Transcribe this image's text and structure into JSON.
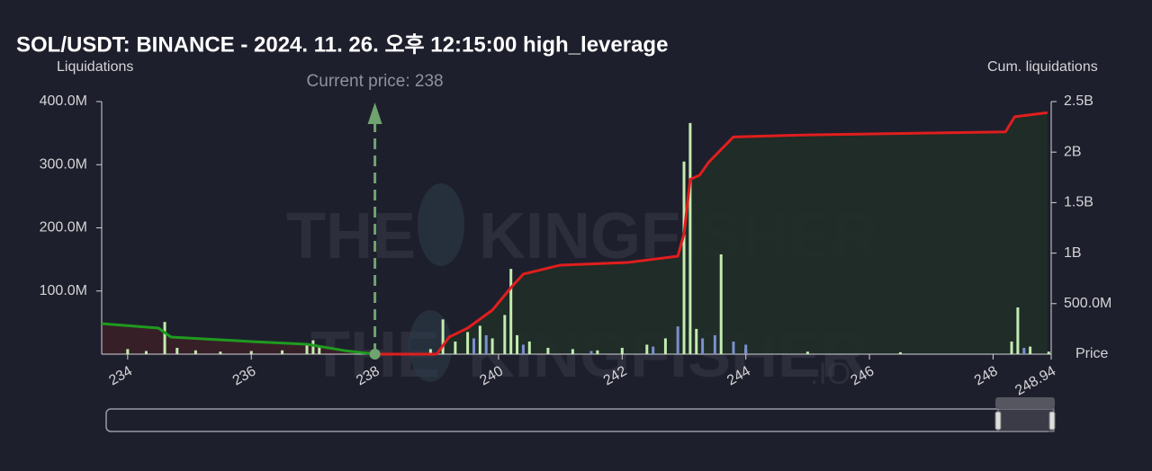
{
  "chart_data": {
    "type": "bar",
    "title": "SOL/USDT: BINANCE - 2024. 11. 26. 오후 12:15:00 high_leverage",
    "y_label": "Liquidations",
    "y2_label": "Cum. liquidations",
    "x_label": "Price",
    "xlim": [
      233.58,
      248.94
    ],
    "xticks": [
      234,
      236,
      238,
      240,
      242,
      244,
      246,
      248,
      248.94
    ],
    "ylim": [
      0,
      400000000
    ],
    "yticks": [
      {
        "value": 100000000,
        "label": "100.0M"
      },
      {
        "value": 200000000,
        "label": "200.0M"
      },
      {
        "value": 300000000,
        "label": "300.0M"
      },
      {
        "value": 400000000,
        "label": "400.0M"
      }
    ],
    "y2lim": [
      0,
      2500000000
    ],
    "y2ticks": [
      {
        "value": 500000000,
        "label": "500.0M"
      },
      {
        "value": 1000000000,
        "label": "1B"
      },
      {
        "value": 1500000000,
        "label": "1.5B"
      },
      {
        "value": 2000000000,
        "label": "2B"
      },
      {
        "value": 2500000000,
        "label": "2.5B"
      }
    ],
    "series": [
      {
        "type": "bar",
        "color": "#c3ecb0",
        "x": [
          234.0,
          234.3,
          234.6,
          234.8,
          235.1,
          235.5,
          236.0,
          236.5,
          236.9,
          237.0,
          237.1,
          238.9,
          239.1,
          239.3,
          239.5,
          239.7,
          239.9,
          240.1,
          240.2,
          240.3,
          240.5,
          240.8,
          241.2,
          241.6,
          242.0,
          242.4,
          242.7,
          243.0,
          243.1,
          243.2,
          243.6,
          244.0,
          245.0,
          246.5,
          248.3,
          248.4,
          248.6,
          248.9
        ],
        "values": [
          8000000,
          5000000,
          51000000,
          10000000,
          6000000,
          4000000,
          5000000,
          6000000,
          15000000,
          22000000,
          12000000,
          8000000,
          55000000,
          20000000,
          35000000,
          45000000,
          25000000,
          62000000,
          135000000,
          30000000,
          20000000,
          10000000,
          8000000,
          6000000,
          10000000,
          15000000,
          25000000,
          305000000,
          366000000,
          40000000,
          158000000,
          8000000,
          4000000,
          3000000,
          20000000,
          74000000,
          12000000,
          4000000
        ]
      },
      {
        "type": "bar",
        "color": "#7b8fd0",
        "x": [
          239.6,
          239.8,
          240.4,
          241.5,
          242.5,
          242.9,
          243.3,
          243.5,
          243.8,
          244.0,
          248.5
        ],
        "values": [
          25000000,
          30000000,
          15000000,
          5000000,
          12000000,
          44000000,
          25000000,
          30000000,
          20000000,
          15000000,
          10000000
        ]
      },
      {
        "type": "line",
        "axis": "y2",
        "color": "#1f9a1f",
        "fill": "#3a1f28",
        "x": [
          233.58,
          234.5,
          234.7,
          236.0,
          236.9,
          237.5,
          238.0
        ],
        "values": [
          302000000,
          258000000,
          169000000,
          125000000,
          98000000,
          36000000,
          0
        ]
      },
      {
        "type": "line",
        "axis": "y2",
        "color": "#e01e1e",
        "fill": "#1f2e27",
        "x": [
          238.0,
          239.0,
          239.2,
          239.5,
          239.9,
          240.2,
          240.4,
          241.0,
          242.1,
          242.9,
          243.0,
          243.1,
          243.25,
          243.4,
          243.8,
          245.0,
          248.2,
          248.35,
          248.88
        ],
        "values": [
          0,
          0,
          169000000,
          258000000,
          436000000,
          658000000,
          792000000,
          881000000,
          908000000,
          970000000,
          1190000000,
          1730000000,
          1770000000,
          1900000000,
          2150000000,
          2170000000,
          2200000000,
          2350000000,
          2390000000
        ]
      }
    ],
    "current_price": {
      "value": 238,
      "label": "Current price: 238",
      "color": "#6fa36f"
    },
    "watermark": [
      "THE",
      "KINGFISHER",
      ".IO"
    ]
  }
}
